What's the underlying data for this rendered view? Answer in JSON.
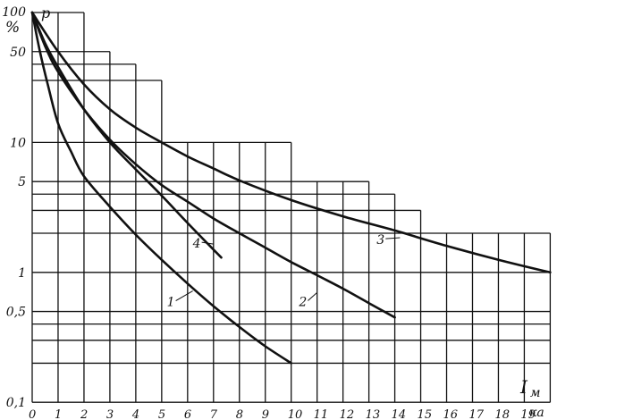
{
  "chart_data": {
    "type": "line",
    "title": "",
    "ylabel": "p",
    "yunit": "%",
    "xlabel": "I",
    "xlabel_sub": "м",
    "xunit": "ка",
    "yscale": "log",
    "ylim": [
      0.1,
      100
    ],
    "xlim": [
      0,
      20
    ],
    "grid": true,
    "x_ticks": [
      "0",
      "1",
      "2",
      "3",
      "4",
      "5",
      "6",
      "7",
      "8",
      "9",
      "10",
      "11",
      "12",
      "13",
      "14",
      "15",
      "16",
      "17",
      "18",
      "19"
    ],
    "y_ticks": [
      "100",
      "50",
      "10",
      "5",
      "1",
      "0,5",
      "0,1"
    ],
    "series": [
      {
        "name": "1",
        "x": [
          0,
          0.3,
          0.6,
          1,
          1.5,
          2,
          3,
          4,
          5,
          6,
          7,
          8,
          9,
          10
        ],
        "y": [
          100,
          50,
          28,
          14,
          8.5,
          5.5,
          3.2,
          1.95,
          1.25,
          0.82,
          0.55,
          0.38,
          0.27,
          0.2
        ]
      },
      {
        "name": "2",
        "x": [
          0,
          0.5,
          1,
          2,
          3,
          4,
          5,
          6,
          7,
          8,
          9,
          10,
          11,
          12,
          13,
          14
        ],
        "y": [
          100,
          55,
          35,
          18,
          10.5,
          6.8,
          4.7,
          3.5,
          2.6,
          2.0,
          1.55,
          1.2,
          0.95,
          0.75,
          0.58,
          0.45
        ]
      },
      {
        "name": "3",
        "x": [
          0,
          1,
          2,
          3,
          4,
          5,
          6,
          7,
          8,
          10,
          12,
          14,
          16,
          18,
          20
        ],
        "y": [
          100,
          50,
          28,
          18,
          13,
          10,
          7.8,
          6.3,
          5.1,
          3.6,
          2.7,
          2.1,
          1.6,
          1.25,
          1.0
        ]
      },
      {
        "name": "4",
        "x": [
          0,
          0.5,
          1,
          2,
          3,
          4,
          5,
          6,
          7.3
        ],
        "y": [
          100,
          58,
          38,
          18,
          10,
          6.2,
          3.9,
          2.4,
          1.3
        ]
      }
    ]
  }
}
